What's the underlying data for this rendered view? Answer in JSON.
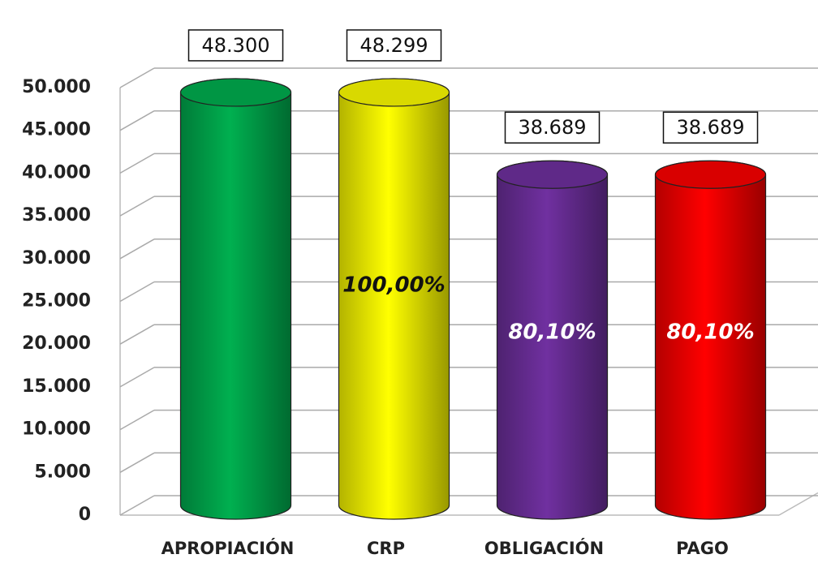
{
  "chart_data": {
    "type": "bar",
    "categories": [
      "APROPIACIÓN",
      "CRP",
      "OBLIGACIÓN",
      "PAGO"
    ],
    "values": [
      48300,
      48299,
      38689,
      38689
    ],
    "value_labels": [
      "48.300",
      "48.299",
      "38.689",
      "38.689"
    ],
    "inner_labels": [
      null,
      "100,00%",
      "80,10%",
      "80,10%"
    ],
    "colors": [
      "#00b050",
      "#ffff00",
      "#7030a0",
      "#ff0000"
    ],
    "inner_label_colors": [
      null,
      "#111111",
      "#ffffff",
      "#ffffff"
    ],
    "ylim": [
      0,
      50000
    ],
    "yticks": [
      {
        "value": 0,
        "label": "0"
      },
      {
        "value": 5000,
        "label": "5.000"
      },
      {
        "value": 10000,
        "label": "10.000"
      },
      {
        "value": 15000,
        "label": "15.000"
      },
      {
        "value": 20000,
        "label": "20.000"
      },
      {
        "value": 25000,
        "label": "25.000"
      },
      {
        "value": 30000,
        "label": "30.000"
      },
      {
        "value": 35000,
        "label": "35.000"
      },
      {
        "value": 40000,
        "label": "40.000"
      },
      {
        "value": 45000,
        "label": "45.000"
      },
      {
        "value": 50000,
        "label": "50.000"
      }
    ],
    "grid": true
  }
}
